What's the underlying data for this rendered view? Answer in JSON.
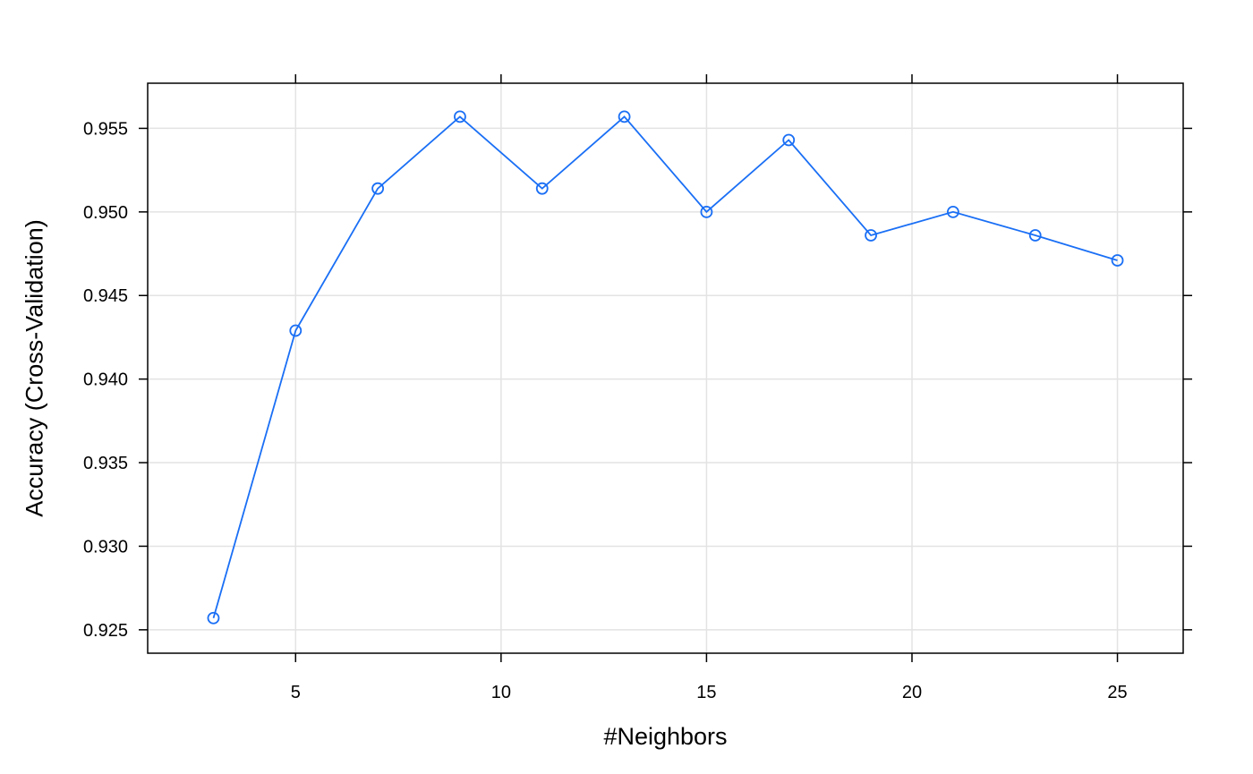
{
  "chart_data": {
    "type": "line",
    "title": "",
    "xlabel": "#Neighbors",
    "ylabel": "Accuracy (Cross-Validation)",
    "xlim": [
      1.4,
      26.6
    ],
    "ylim": [
      0.9236,
      0.9577
    ],
    "xticks": [
      5,
      10,
      15,
      20,
      25
    ],
    "xtick_labels": [
      "5",
      "10",
      "15",
      "20",
      "25"
    ],
    "yticks": [
      0.925,
      0.93,
      0.935,
      0.94,
      0.945,
      0.95,
      0.955
    ],
    "ytick_labels": [
      "0.925",
      "0.930",
      "0.935",
      "0.940",
      "0.945",
      "0.950",
      "0.955"
    ],
    "grid": true,
    "legend": "none",
    "colors": {
      "series": "#1a6ff5",
      "grid": "#e3e3e3",
      "frame": "#000000"
    },
    "series": [
      {
        "x": [
          3,
          5,
          7,
          9,
          11,
          13,
          15,
          17,
          19,
          21,
          23,
          25
        ],
        "y": [
          0.9257,
          0.9429,
          0.9514,
          0.9557,
          0.9514,
          0.9557,
          0.95,
          0.9543,
          0.9486,
          0.95,
          0.9486,
          0.9471
        ]
      }
    ]
  }
}
